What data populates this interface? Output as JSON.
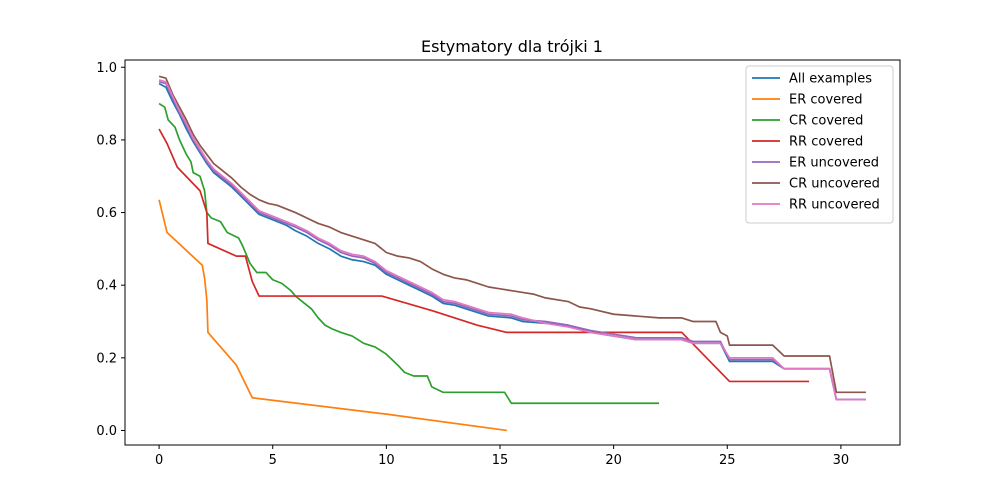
{
  "chart_data": {
    "type": "line",
    "title": "Estymatory dla trójki 1",
    "xlabel": "",
    "ylabel": "",
    "xlim": [
      -1.5,
      32.6
    ],
    "ylim": [
      -0.04,
      1.02
    ],
    "xticks": [
      0,
      5,
      10,
      15,
      20,
      25,
      30
    ],
    "yticks": [
      0.0,
      0.2,
      0.4,
      0.6,
      0.8,
      1.0
    ],
    "xtick_labels": [
      "0",
      "5",
      "10",
      "15",
      "20",
      "25",
      "30"
    ],
    "ytick_labels": [
      "0.0",
      "0.2",
      "0.4",
      "0.6",
      "0.8",
      "1.0"
    ],
    "grid": false,
    "legend_position": "top-right",
    "series": [
      {
        "name": "All examples",
        "color": "#1f77b4",
        "points": [
          [
            0,
            0.955
          ],
          [
            0.3,
            0.945
          ],
          [
            0.6,
            0.905
          ],
          [
            0.9,
            0.87
          ],
          [
            1.2,
            0.83
          ],
          [
            1.5,
            0.795
          ],
          [
            1.8,
            0.765
          ],
          [
            2.1,
            0.735
          ],
          [
            2.4,
            0.71
          ],
          [
            2.8,
            0.69
          ],
          [
            3.2,
            0.67
          ],
          [
            3.6,
            0.645
          ],
          [
            4.0,
            0.62
          ],
          [
            4.4,
            0.595
          ],
          [
            4.8,
            0.585
          ],
          [
            5.2,
            0.575
          ],
          [
            5.6,
            0.565
          ],
          [
            6.0,
            0.55
          ],
          [
            6.5,
            0.535
          ],
          [
            7.0,
            0.515
          ],
          [
            7.5,
            0.5
          ],
          [
            8.0,
            0.48
          ],
          [
            8.5,
            0.47
          ],
          [
            9.0,
            0.465
          ],
          [
            9.5,
            0.455
          ],
          [
            10.0,
            0.43
          ],
          [
            10.5,
            0.415
          ],
          [
            11.0,
            0.4
          ],
          [
            11.5,
            0.385
          ],
          [
            12.0,
            0.37
          ],
          [
            12.5,
            0.35
          ],
          [
            13.0,
            0.345
          ],
          [
            13.5,
            0.335
          ],
          [
            14.0,
            0.325
          ],
          [
            14.5,
            0.315
          ],
          [
            15.5,
            0.31
          ],
          [
            16.0,
            0.3
          ],
          [
            17.0,
            0.295
          ],
          [
            18.0,
            0.29
          ],
          [
            19.0,
            0.27
          ],
          [
            20.0,
            0.26
          ],
          [
            21.0,
            0.25
          ],
          [
            22.0,
            0.25
          ],
          [
            23.0,
            0.25
          ],
          [
            23.5,
            0.24
          ],
          [
            24.0,
            0.24
          ],
          [
            24.7,
            0.24
          ],
          [
            25.1,
            0.19
          ],
          [
            26.0,
            0.19
          ],
          [
            27.0,
            0.19
          ],
          [
            27.5,
            0.17
          ],
          [
            29.5,
            0.17
          ],
          [
            29.8,
            0.085
          ],
          [
            31.1,
            0.085
          ]
        ]
      },
      {
        "name": "ER covered",
        "color": "#ff7f0e",
        "points": [
          [
            0,
            0.635
          ],
          [
            0.35,
            0.545
          ],
          [
            1.9,
            0.455
          ],
          [
            2.0,
            0.42
          ],
          [
            2.1,
            0.36
          ],
          [
            2.15,
            0.27
          ],
          [
            3.4,
            0.18
          ],
          [
            4.1,
            0.09
          ],
          [
            10.0,
            0.045
          ],
          [
            15.3,
            0.0
          ]
        ]
      },
      {
        "name": "CR covered",
        "color": "#2ca02c",
        "points": [
          [
            0,
            0.9
          ],
          [
            0.25,
            0.89
          ],
          [
            0.4,
            0.855
          ],
          [
            0.7,
            0.835
          ],
          [
            0.9,
            0.8
          ],
          [
            1.2,
            0.76
          ],
          [
            1.4,
            0.74
          ],
          [
            1.5,
            0.71
          ],
          [
            1.8,
            0.7
          ],
          [
            2.0,
            0.66
          ],
          [
            2.1,
            0.6
          ],
          [
            2.3,
            0.585
          ],
          [
            2.7,
            0.575
          ],
          [
            3.0,
            0.545
          ],
          [
            3.5,
            0.53
          ],
          [
            3.7,
            0.505
          ],
          [
            4.0,
            0.46
          ],
          [
            4.3,
            0.435
          ],
          [
            4.7,
            0.435
          ],
          [
            5.0,
            0.415
          ],
          [
            5.4,
            0.405
          ],
          [
            5.8,
            0.385
          ],
          [
            6.0,
            0.37
          ],
          [
            6.3,
            0.355
          ],
          [
            6.7,
            0.335
          ],
          [
            7.0,
            0.31
          ],
          [
            7.3,
            0.29
          ],
          [
            7.6,
            0.28
          ],
          [
            8.0,
            0.27
          ],
          [
            8.5,
            0.26
          ],
          [
            9.0,
            0.24
          ],
          [
            9.5,
            0.23
          ],
          [
            10.0,
            0.21
          ],
          [
            10.5,
            0.18
          ],
          [
            10.8,
            0.16
          ],
          [
            11.2,
            0.15
          ],
          [
            11.8,
            0.15
          ],
          [
            12.0,
            0.12
          ],
          [
            12.5,
            0.105
          ],
          [
            15.2,
            0.105
          ],
          [
            15.5,
            0.075
          ],
          [
            22.0,
            0.075
          ]
        ]
      },
      {
        "name": "RR covered",
        "color": "#d62728",
        "points": [
          [
            0,
            0.83
          ],
          [
            0.35,
            0.79
          ],
          [
            0.8,
            0.725
          ],
          [
            1.8,
            0.66
          ],
          [
            2.1,
            0.6
          ],
          [
            2.15,
            0.515
          ],
          [
            3.4,
            0.48
          ],
          [
            3.8,
            0.48
          ],
          [
            4.1,
            0.41
          ],
          [
            4.4,
            0.37
          ],
          [
            9.8,
            0.37
          ],
          [
            12.0,
            0.33
          ],
          [
            14.0,
            0.29
          ],
          [
            15.3,
            0.27
          ],
          [
            23.0,
            0.27
          ],
          [
            25.1,
            0.135
          ],
          [
            28.6,
            0.135
          ]
        ]
      },
      {
        "name": "ER uncovered",
        "color": "#9467bd",
        "points": [
          [
            0,
            0.96
          ],
          [
            0.3,
            0.955
          ],
          [
            0.6,
            0.915
          ],
          [
            0.9,
            0.875
          ],
          [
            1.2,
            0.84
          ],
          [
            1.5,
            0.8
          ],
          [
            1.8,
            0.77
          ],
          [
            2.1,
            0.74
          ],
          [
            2.4,
            0.715
          ],
          [
            2.8,
            0.695
          ],
          [
            3.2,
            0.675
          ],
          [
            3.6,
            0.65
          ],
          [
            4.0,
            0.625
          ],
          [
            4.4,
            0.6
          ],
          [
            4.8,
            0.59
          ],
          [
            5.2,
            0.58
          ],
          [
            5.6,
            0.57
          ],
          [
            6.0,
            0.56
          ],
          [
            6.5,
            0.545
          ],
          [
            7.0,
            0.525
          ],
          [
            7.5,
            0.51
          ],
          [
            8.0,
            0.49
          ],
          [
            8.5,
            0.48
          ],
          [
            9.0,
            0.475
          ],
          [
            9.5,
            0.46
          ],
          [
            10.0,
            0.435
          ],
          [
            10.5,
            0.42
          ],
          [
            11.0,
            0.405
          ],
          [
            11.5,
            0.39
          ],
          [
            12.0,
            0.375
          ],
          [
            12.5,
            0.355
          ],
          [
            13.0,
            0.35
          ],
          [
            13.5,
            0.34
          ],
          [
            14.0,
            0.33
          ],
          [
            14.5,
            0.32
          ],
          [
            15.5,
            0.315
          ],
          [
            16.0,
            0.305
          ],
          [
            17.0,
            0.3
          ],
          [
            18.0,
            0.29
          ],
          [
            19.0,
            0.275
          ],
          [
            20.0,
            0.265
          ],
          [
            21.0,
            0.255
          ],
          [
            22.0,
            0.255
          ],
          [
            23.0,
            0.255
          ],
          [
            23.5,
            0.245
          ],
          [
            24.0,
            0.245
          ],
          [
            24.7,
            0.245
          ],
          [
            25.1,
            0.195
          ],
          [
            26.0,
            0.195
          ],
          [
            27.0,
            0.195
          ],
          [
            27.5,
            0.17
          ],
          [
            29.5,
            0.17
          ],
          [
            29.8,
            0.085
          ],
          [
            31.1,
            0.085
          ]
        ]
      },
      {
        "name": "CR uncovered",
        "color": "#8c564b",
        "points": [
          [
            0,
            0.975
          ],
          [
            0.3,
            0.97
          ],
          [
            0.6,
            0.925
          ],
          [
            0.9,
            0.89
          ],
          [
            1.2,
            0.855
          ],
          [
            1.5,
            0.815
          ],
          [
            1.8,
            0.785
          ],
          [
            2.1,
            0.76
          ],
          [
            2.4,
            0.735
          ],
          [
            2.8,
            0.715
          ],
          [
            3.2,
            0.695
          ],
          [
            3.6,
            0.67
          ],
          [
            4.0,
            0.65
          ],
          [
            4.4,
            0.635
          ],
          [
            4.8,
            0.625
          ],
          [
            5.2,
            0.62
          ],
          [
            5.6,
            0.61
          ],
          [
            6.0,
            0.6
          ],
          [
            6.5,
            0.585
          ],
          [
            7.0,
            0.57
          ],
          [
            7.5,
            0.56
          ],
          [
            8.0,
            0.545
          ],
          [
            8.5,
            0.535
          ],
          [
            9.0,
            0.525
          ],
          [
            9.5,
            0.515
          ],
          [
            10.0,
            0.49
          ],
          [
            10.5,
            0.48
          ],
          [
            11.0,
            0.475
          ],
          [
            11.5,
            0.465
          ],
          [
            12.0,
            0.445
          ],
          [
            12.5,
            0.43
          ],
          [
            13.0,
            0.42
          ],
          [
            13.5,
            0.415
          ],
          [
            14.0,
            0.405
          ],
          [
            14.5,
            0.395
          ],
          [
            15.0,
            0.39
          ],
          [
            16.0,
            0.38
          ],
          [
            16.5,
            0.375
          ],
          [
            17.0,
            0.365
          ],
          [
            18.0,
            0.355
          ],
          [
            18.5,
            0.34
          ],
          [
            19.0,
            0.335
          ],
          [
            20.0,
            0.32
          ],
          [
            21.0,
            0.315
          ],
          [
            22.0,
            0.31
          ],
          [
            23.0,
            0.31
          ],
          [
            23.5,
            0.3
          ],
          [
            24.5,
            0.3
          ],
          [
            24.7,
            0.27
          ],
          [
            25.0,
            0.26
          ],
          [
            25.1,
            0.235
          ],
          [
            27.0,
            0.235
          ],
          [
            27.5,
            0.205
          ],
          [
            29.5,
            0.205
          ],
          [
            29.8,
            0.105
          ],
          [
            31.1,
            0.105
          ]
        ]
      },
      {
        "name": "RR uncovered",
        "color": "#e377c2",
        "points": [
          [
            0,
            0.965
          ],
          [
            0.3,
            0.96
          ],
          [
            0.6,
            0.92
          ],
          [
            0.9,
            0.88
          ],
          [
            1.2,
            0.845
          ],
          [
            1.5,
            0.805
          ],
          [
            1.8,
            0.775
          ],
          [
            2.1,
            0.745
          ],
          [
            2.4,
            0.72
          ],
          [
            2.8,
            0.7
          ],
          [
            3.2,
            0.68
          ],
          [
            3.6,
            0.655
          ],
          [
            4.0,
            0.63
          ],
          [
            4.4,
            0.605
          ],
          [
            4.8,
            0.595
          ],
          [
            5.2,
            0.585
          ],
          [
            5.6,
            0.575
          ],
          [
            6.0,
            0.565
          ],
          [
            6.5,
            0.55
          ],
          [
            7.0,
            0.53
          ],
          [
            7.5,
            0.515
          ],
          [
            8.0,
            0.495
          ],
          [
            8.5,
            0.485
          ],
          [
            9.0,
            0.48
          ],
          [
            9.5,
            0.465
          ],
          [
            10.0,
            0.44
          ],
          [
            10.5,
            0.425
          ],
          [
            11.0,
            0.41
          ],
          [
            11.5,
            0.395
          ],
          [
            12.0,
            0.38
          ],
          [
            12.5,
            0.36
          ],
          [
            13.0,
            0.355
          ],
          [
            13.5,
            0.345
          ],
          [
            14.0,
            0.335
          ],
          [
            14.5,
            0.325
          ],
          [
            15.5,
            0.32
          ],
          [
            16.0,
            0.31
          ],
          [
            17.0,
            0.295
          ],
          [
            18.0,
            0.285
          ],
          [
            19.0,
            0.27
          ],
          [
            20.0,
            0.26
          ],
          [
            21.0,
            0.25
          ],
          [
            22.0,
            0.25
          ],
          [
            23.0,
            0.25
          ],
          [
            23.5,
            0.24
          ],
          [
            24.0,
            0.24
          ],
          [
            24.7,
            0.24
          ],
          [
            25.1,
            0.2
          ],
          [
            26.0,
            0.2
          ],
          [
            27.0,
            0.2
          ],
          [
            27.5,
            0.17
          ],
          [
            29.5,
            0.17
          ],
          [
            29.8,
            0.085
          ],
          [
            31.1,
            0.085
          ]
        ]
      }
    ]
  }
}
